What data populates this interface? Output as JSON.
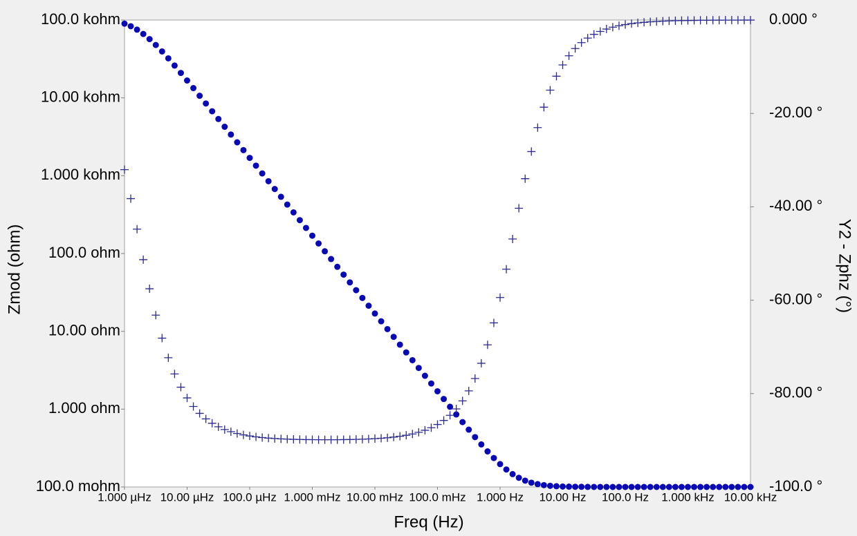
{
  "chart_data": {
    "type": "scatter",
    "xlabel": "Freq (Hz)",
    "ylabel": "Zmod (ohm)",
    "y2label": "Y2 - Zphz (°)",
    "xscale": "log",
    "yscale": "log",
    "xlim": [
      1e-06,
      10000
    ],
    "ylim": [
      0.1,
      100000
    ],
    "y2lim": [
      -100,
      0
    ],
    "xticks": [
      {
        "value": 1e-06,
        "label": "1.000 µHz"
      },
      {
        "value": 1e-05,
        "label": "10.00 µHz"
      },
      {
        "value": 0.0001,
        "label": "100.0 µHz"
      },
      {
        "value": 0.001,
        "label": "1.000 mHz"
      },
      {
        "value": 0.01,
        "label": "10.00 mHz"
      },
      {
        "value": 0.1,
        "label": "100.0 mHz"
      },
      {
        "value": 1,
        "label": "1.000 Hz"
      },
      {
        "value": 10,
        "label": "10.00 Hz"
      },
      {
        "value": 100,
        "label": "100.0 Hz"
      },
      {
        "value": 1000,
        "label": "1.000 kHz"
      },
      {
        "value": 10000,
        "label": "10.00 kHz"
      }
    ],
    "yticks": [
      {
        "value": 0.1,
        "label": "100.0 mohm"
      },
      {
        "value": 1,
        "label": "1.000 ohm"
      },
      {
        "value": 10,
        "label": "10.00 ohm"
      },
      {
        "value": 100,
        "label": "100.0 ohm"
      },
      {
        "value": 1000,
        "label": "1.000 kohm"
      },
      {
        "value": 10000,
        "label": "10.00 kohm"
      },
      {
        "value": 100000,
        "label": "100.0 kohm"
      }
    ],
    "y2ticks": [
      {
        "value": 0,
        "label": "0.000 °"
      },
      {
        "value": -20,
        "label": "-20.00 °"
      },
      {
        "value": -40,
        "label": "-40.00 °"
      },
      {
        "value": -60,
        "label": "-60.00 °"
      },
      {
        "value": -80,
        "label": "-80.00 °"
      },
      {
        "value": -100,
        "label": "-100.0 °"
      }
    ],
    "x": [
      1e-06,
      1.259e-06,
      1.585e-06,
      1.995e-06,
      2.512e-06,
      3.162e-06,
      3.981e-06,
      5.012e-06,
      6.31e-06,
      7.943e-06,
      1e-05,
      1.259e-05,
      1.585e-05,
      1.995e-05,
      2.512e-05,
      3.162e-05,
      3.981e-05,
      5.012e-05,
      6.31e-05,
      7.943e-05,
      0.0001,
      0.0001259,
      0.0001585,
      0.0001995,
      0.0002512,
      0.0003162,
      0.0003981,
      0.0005012,
      0.000631,
      0.0007943,
      0.001,
      0.001259,
      0.001585,
      0.001995,
      0.002512,
      0.003162,
      0.003981,
      0.005012,
      0.00631,
      0.007943,
      0.01,
      0.01259,
      0.01585,
      0.01995,
      0.02512,
      0.03162,
      0.03981,
      0.05012,
      0.0631,
      0.07943,
      0.1,
      0.1259,
      0.1585,
      0.1995,
      0.2512,
      0.3162,
      0.3981,
      0.5012,
      0.631,
      0.7943,
      1,
      1.259,
      1.585,
      1.995,
      2.512,
      3.162,
      3.981,
      5.012,
      6.31,
      7.943,
      10,
      12.59,
      15.85,
      19.95,
      25.12,
      31.62,
      39.81,
      50.12,
      63.1,
      79.43,
      100,
      125.9,
      158.5,
      199.5,
      251.2,
      316.2,
      398.1,
      501.2,
      631,
      794.3,
      1000,
      1259,
      1585,
      1995,
      2512,
      3162,
      3981,
      5012,
      6310,
      7943,
      10000
    ],
    "series": [
      {
        "color": "#0a0ab4",
        "marker": "circle",
        "values": [
          89845,
          83250,
          75245,
          66243,
          56880,
          47790,
          39471,
          32187,
          26014,
          20896,
          16719,
          13342,
          10629,
          8458,
          6727,
          5347,
          4249,
          3376,
          2683,
          2131,
          1693,
          1345,
          1068.4,
          848.6,
          674.1,
          535.4,
          425.3,
          337.8,
          268.4,
          213.2,
          169.3,
          134.5,
          106.8,
          84.86,
          67.41,
          53.54,
          42.53,
          33.78,
          26.84,
          21.32,
          16.93,
          13.45,
          10.68,
          8.487,
          6.742,
          5.355,
          4.254,
          3.38,
          2.685,
          2.134,
          1.696,
          1.349,
          1.073,
          0.8545,
          0.6814,
          0.5447,
          0.4369,
          0.3523,
          0.2864,
          0.2355,
          0.1966,
          0.1676,
          0.1463,
          0.1312,
          0.1206,
          0.1134,
          0.1087,
          0.1056,
          0.1035,
          0.1023,
          0.1014,
          0.1009,
          0.1006,
          0.1004,
          0.1002,
          0.1001,
          0.1001,
          0.1001,
          0.1,
          0.1,
          0.1,
          0.1,
          0.1,
          0.1,
          0.1,
          0.1,
          0.1,
          0.1,
          0.1,
          0.1,
          0.1,
          0.1,
          0.1,
          0.1,
          0.1,
          0.1,
          0.1,
          0.1,
          0.1,
          0.1,
          0.1
        ]
      },
      {
        "color": "#2a2a90",
        "marker": "plus",
        "axis": "y2",
        "values": [
          -32.05,
          -38.25,
          -44.78,
          -51.32,
          -57.55,
          -63.2,
          -68.13,
          -72.32,
          -75.79,
          -78.63,
          -80.93,
          -82.77,
          -84.24,
          -85.42,
          -86.36,
          -87.11,
          -87.7,
          -88.17,
          -88.55,
          -88.85,
          -89.08,
          -89.27,
          -89.42,
          -89.53,
          -89.63,
          -89.7,
          -89.76,
          -89.8,
          -89.83,
          -89.86,
          -89.87,
          -89.88,
          -89.89,
          -89.89,
          -89.88,
          -89.86,
          -89.84,
          -89.81,
          -89.77,
          -89.72,
          -89.65,
          -89.57,
          -89.46,
          -89.32,
          -89.15,
          -88.93,
          -88.65,
          -88.3,
          -87.86,
          -87.31,
          -86.62,
          -85.75,
          -84.65,
          -83.28,
          -81.56,
          -79.42,
          -76.77,
          -73.51,
          -69.56,
          -64.86,
          -59.43,
          -53.37,
          -46.89,
          -40.31,
          -33.98,
          -28.17,
          -23.04,
          -18.67,
          -15.02,
          -12.03,
          -9.61,
          -7.66,
          -6.1,
          -4.85,
          -3.86,
          -3.06,
          -2.44,
          -1.93,
          -1.54,
          -1.22,
          -0.97,
          -0.77,
          -0.61,
          -0.49,
          -0.39,
          -0.31,
          -0.24,
          -0.19,
          -0.15,
          -0.12,
          -0.1,
          -0.08,
          -0.06,
          -0.05,
          -0.04,
          -0.03,
          -0.02,
          -0.02,
          -0.02,
          -0.01,
          -0.01
        ]
      }
    ]
  }
}
